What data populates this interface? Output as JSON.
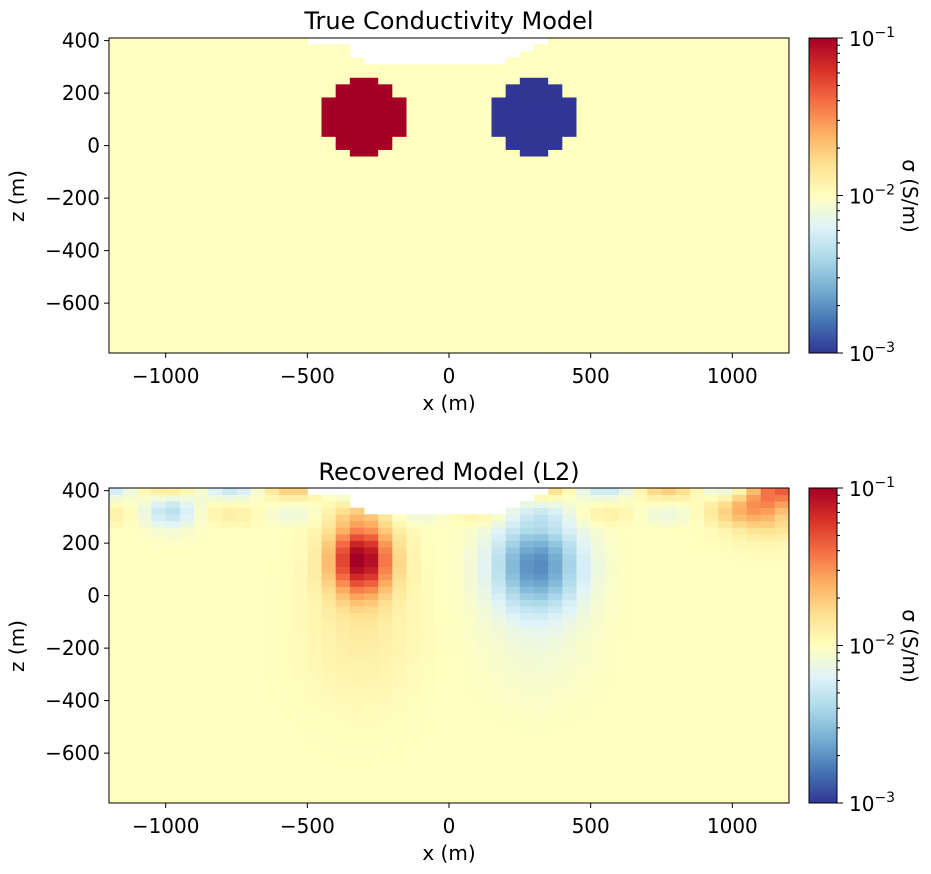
{
  "chart_data": [
    {
      "type": "heatmap",
      "title": "True Conductivity Model",
      "xlabel": "x (m)",
      "ylabel": "z (m)",
      "xlim": [
        -1200,
        1200
      ],
      "ylim": [
        -790,
        410
      ],
      "xticks": [
        -1000,
        -500,
        0,
        500,
        1000
      ],
      "xtick_labels": [
        "−1000",
        "−500",
        "0",
        "500",
        "1000"
      ],
      "yticks": [
        -600,
        -400,
        -200,
        0,
        200,
        400
      ],
      "ytick_labels": [
        "−600",
        "−400",
        "−200",
        "0",
        "200",
        "400"
      ],
      "colormap": "RdYlBu_r",
      "log_color_scale": true,
      "colorbar": {
        "label": "σ (S/m)",
        "range": [
          0.001,
          0.1
        ],
        "ticks": [
          {
            "base": "10",
            "exp": "−3"
          },
          {
            "base": "10",
            "exp": "−2"
          },
          {
            "base": "10",
            "exp": "−1"
          }
        ]
      },
      "background_sigma": 0.01,
      "anomalies": [
        {
          "label": "conductive",
          "center_x": -300,
          "center_z": 110,
          "radius": 150,
          "sigma": 0.1
        },
        {
          "label": "resistive",
          "center_x": 300,
          "center_z": 110,
          "radius": 150,
          "sigma": 0.001
        }
      ],
      "air_surface": [
        [
          -800,
          410
        ],
        [
          -550,
          400
        ],
        [
          -380,
          385
        ],
        [
          -300,
          320
        ],
        [
          -200,
          315
        ],
        [
          200,
          320
        ],
        [
          300,
          385
        ],
        [
          380,
          400
        ],
        [
          550,
          410
        ],
        [
          800,
          410
        ]
      ]
    },
    {
      "type": "heatmap",
      "title": "Recovered Model (L2)",
      "xlabel": "x (m)",
      "ylabel": "z (m)",
      "xlim": [
        -1200,
        1200
      ],
      "ylim": [
        -790,
        410
      ],
      "xticks": [
        -1000,
        -500,
        0,
        500,
        1000
      ],
      "xtick_labels": [
        "−1000",
        "−500",
        "0",
        "500",
        "1000"
      ],
      "yticks": [
        -600,
        -400,
        -200,
        0,
        200,
        400
      ],
      "ytick_labels": [
        "−600",
        "−400",
        "−200",
        "0",
        "200",
        "400"
      ],
      "colormap": "RdYlBu_r",
      "log_color_scale": true,
      "colorbar": {
        "label": "σ (S/m)",
        "range": [
          0.001,
          0.1
        ],
        "ticks": [
          {
            "base": "10",
            "exp": "−3"
          },
          {
            "base": "10",
            "exp": "−2"
          },
          {
            "base": "10",
            "exp": "−1"
          }
        ]
      },
      "background_sigma": 0.01,
      "anomalies": [
        {
          "label": "conductive",
          "center_x": -310,
          "center_z": 140,
          "radius": 150,
          "sigma": 0.1
        },
        {
          "label": "resistive",
          "center_x": 310,
          "center_z": 120,
          "radius": 170,
          "sigma": 0.002
        }
      ],
      "air_surface": [
        [
          -800,
          410
        ],
        [
          -550,
          400
        ],
        [
          -380,
          385
        ],
        [
          -300,
          320
        ],
        [
          -200,
          315
        ],
        [
          200,
          320
        ],
        [
          300,
          385
        ],
        [
          380,
          400
        ],
        [
          550,
          410
        ],
        [
          800,
          410
        ]
      ]
    }
  ]
}
